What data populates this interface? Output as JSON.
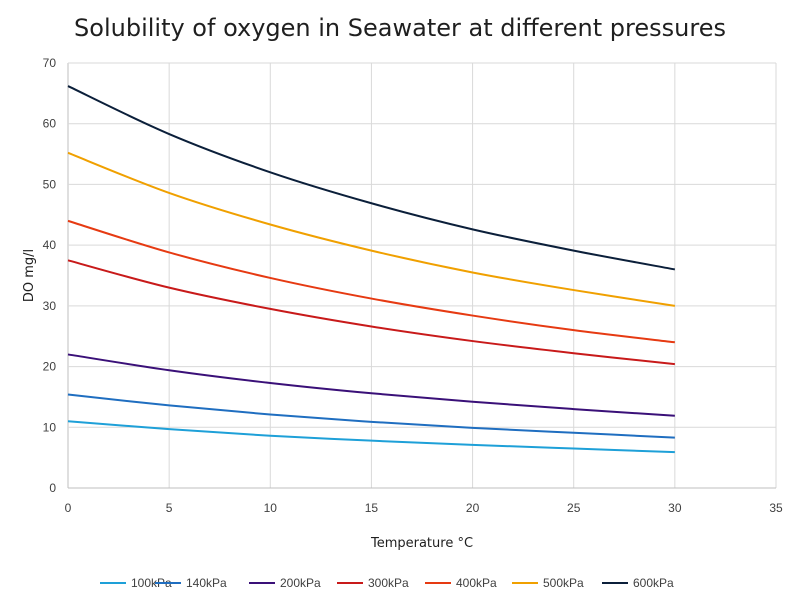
{
  "chart_data": {
    "type": "line",
    "title": "Solubility of oxygen in Seawater at different pressures",
    "xlabel": "Temperature  °C",
    "ylabel": "DO mg/l",
    "xlim": [
      0,
      35
    ],
    "ylim": [
      0,
      70
    ],
    "xticks": [
      0,
      5,
      10,
      15,
      20,
      25,
      30,
      35
    ],
    "yticks": [
      0,
      10,
      20,
      30,
      40,
      50,
      60,
      70
    ],
    "grid": true,
    "legend_position": "bottom",
    "x": [
      0,
      5,
      10,
      15,
      20,
      25,
      30
    ],
    "series": [
      {
        "name": "100kPa",
        "color": "#1ea0d8",
        "values": [
          11.0,
          9.7,
          8.6,
          7.8,
          7.1,
          6.5,
          5.9
        ]
      },
      {
        "name": "140kPa",
        "color": "#1f6ec0",
        "values": [
          15.4,
          13.6,
          12.1,
          10.9,
          9.9,
          9.1,
          8.3
        ]
      },
      {
        "name": "200kPa",
        "color": "#3a1078",
        "values": [
          22.0,
          19.4,
          17.3,
          15.6,
          14.2,
          13.0,
          11.9
        ]
      },
      {
        "name": "300kPa",
        "color": "#c81a1a",
        "values": [
          37.5,
          33.0,
          29.5,
          26.6,
          24.2,
          22.2,
          20.4
        ]
      },
      {
        "name": "400kPa",
        "color": "#e63a12",
        "values": [
          44.0,
          38.8,
          34.6,
          31.2,
          28.4,
          26.0,
          24.0
        ]
      },
      {
        "name": "500kPa",
        "color": "#f0a000",
        "values": [
          55.2,
          48.6,
          43.4,
          39.1,
          35.5,
          32.6,
          30.0
        ]
      },
      {
        "name": "600kPa",
        "color": "#0b1f3a",
        "values": [
          66.2,
          58.3,
          52.0,
          46.9,
          42.6,
          39.1,
          36.0
        ]
      }
    ]
  }
}
